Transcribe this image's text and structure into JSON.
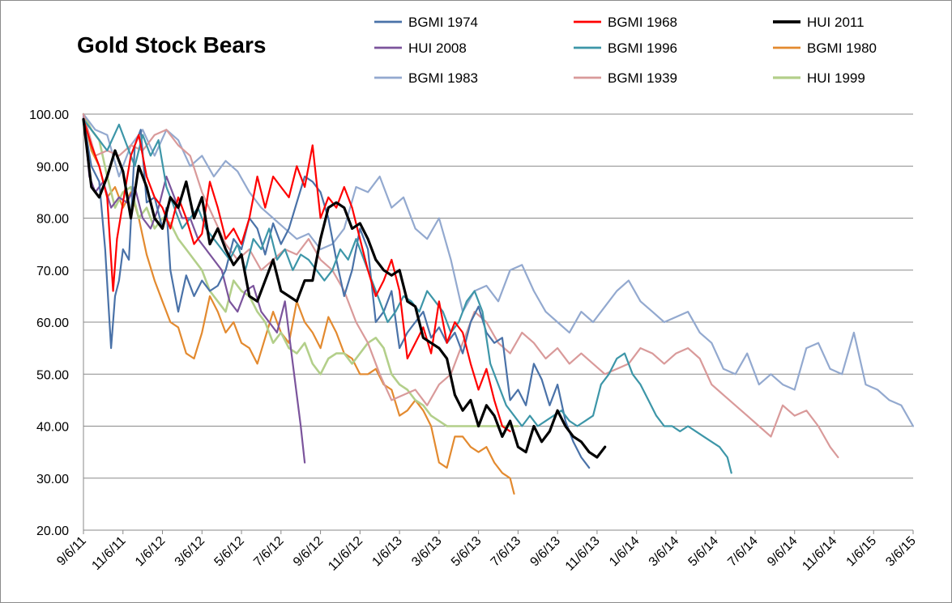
{
  "chart_data": {
    "type": "line",
    "title": "Gold Stock Bears",
    "ylim": [
      20,
      100
    ],
    "yticks": [
      "100.00",
      "90.00",
      "80.00",
      "70.00",
      "60.00",
      "50.00",
      "40.00",
      "30.00",
      "20.00"
    ],
    "xticks": [
      "9/6/11",
      "11/6/11",
      "1/6/12",
      "3/6/12",
      "5/6/12",
      "7/6/12",
      "9/6/12",
      "11/6/12",
      "1/6/13",
      "3/6/13",
      "5/6/13",
      "7/6/13",
      "9/6/13",
      "11/6/13",
      "1/6/14",
      "3/6/14",
      "5/6/14",
      "7/6/14",
      "9/6/14",
      "11/6/14",
      "1/6/15",
      "3/6/15"
    ],
    "grid": "horizontal",
    "legend_position": "top",
    "series": [
      {
        "name": "BGMI 1974",
        "color": "#4a72a8",
        "width": 2.2,
        "x": [
          0,
          0.2,
          0.4,
          0.55,
          0.7,
          0.8,
          0.9,
          1,
          1.15,
          1.3,
          1.45,
          1.6,
          1.8,
          2,
          2.1,
          2.2,
          2.4,
          2.6,
          2.8,
          3,
          3.2,
          3.4,
          3.6,
          3.8,
          4,
          4.2,
          4.4,
          4.6,
          4.8,
          5,
          5.2,
          5.4,
          5.6,
          5.8,
          6,
          6.2,
          6.4,
          6.6,
          6.8,
          7,
          7.2,
          7.4,
          7.6,
          7.8,
          8,
          8.2,
          8.4,
          8.6,
          8.8,
          9,
          9.2,
          9.4,
          9.6,
          9.8,
          10,
          10.2,
          10.4,
          10.6,
          10.8,
          11,
          11.2,
          11.4,
          11.6,
          11.8,
          12,
          12.2,
          12.4,
          12.6,
          12.8
        ],
        "y": [
          99,
          90,
          87,
          74,
          55,
          65,
          68,
          74,
          72,
          94,
          97,
          83,
          84,
          78,
          82,
          70,
          62,
          69,
          65,
          68,
          66,
          67,
          70,
          76,
          74,
          80,
          78,
          73,
          79,
          75,
          78,
          83,
          88,
          87,
          85,
          80,
          72,
          65,
          70,
          78,
          74,
          60,
          62,
          66,
          55,
          58,
          60,
          62,
          57,
          59,
          56,
          58,
          54,
          60,
          63,
          58,
          56,
          57,
          45,
          47,
          44,
          52,
          49,
          44,
          48,
          41,
          37,
          34,
          32
        ]
      },
      {
        "name": "BGMI 1968",
        "color": "#ff0000",
        "width": 2.2,
        "x": [
          0,
          0.2,
          0.4,
          0.6,
          0.75,
          0.85,
          1,
          1.2,
          1.4,
          1.6,
          1.8,
          2,
          2.2,
          2.4,
          2.6,
          2.8,
          3,
          3.2,
          3.4,
          3.6,
          3.8,
          4,
          4.2,
          4.4,
          4.6,
          4.8,
          5,
          5.2,
          5.4,
          5.6,
          5.8,
          6,
          6.2,
          6.4,
          6.6,
          6.8,
          7,
          7.2,
          7.4,
          7.6,
          7.8,
          8,
          8.2,
          8.4,
          8.6,
          8.8,
          9,
          9.2,
          9.4,
          9.6,
          9.8,
          10,
          10.2,
          10.4,
          10.6,
          10.8
        ],
        "y": [
          99,
          94,
          90,
          84,
          66,
          76,
          83,
          92,
          96,
          88,
          84,
          82,
          78,
          84,
          80,
          75,
          77,
          87,
          82,
          76,
          78,
          75,
          80,
          88,
          82,
          88,
          86,
          84,
          90,
          86,
          94,
          80,
          84,
          82,
          86,
          82,
          76,
          70,
          65,
          68,
          72,
          66,
          53,
          56,
          59,
          54,
          64,
          56,
          60,
          58,
          52,
          47,
          51,
          45,
          40,
          39
        ]
      },
      {
        "name": "HUI 2011",
        "color": "#000000",
        "width": 3.2,
        "x": [
          0,
          0.2,
          0.4,
          0.6,
          0.8,
          1,
          1.2,
          1.4,
          1.6,
          1.8,
          2,
          2.2,
          2.4,
          2.6,
          2.8,
          3,
          3.2,
          3.4,
          3.6,
          3.8,
          4,
          4.2,
          4.4,
          4.6,
          4.8,
          5,
          5.2,
          5.4,
          5.6,
          5.8,
          6,
          6.2,
          6.4,
          6.6,
          6.8,
          7,
          7.2,
          7.4,
          7.6,
          7.8,
          8,
          8.2,
          8.4,
          8.6,
          8.8,
          9,
          9.2,
          9.4,
          9.6,
          9.8,
          10,
          10.2,
          10.4,
          10.6,
          10.8,
          11,
          11.2,
          11.4,
          11.6,
          11.8,
          12,
          12.2,
          12.4,
          12.6,
          12.8,
          13,
          13.2
        ],
        "y": [
          99,
          86,
          84,
          88,
          93,
          89,
          80,
          90,
          86,
          80,
          78,
          84,
          82,
          87,
          80,
          84,
          75,
          78,
          74,
          71,
          73,
          65,
          64,
          68,
          72,
          66,
          65,
          64,
          68,
          68,
          76,
          82,
          83,
          82,
          78,
          79,
          76,
          72,
          70,
          69,
          70,
          64,
          63,
          57,
          56,
          55,
          53,
          46,
          43,
          45,
          40,
          44,
          42,
          38,
          41,
          36,
          35,
          40,
          37,
          39,
          43,
          40,
          38,
          37,
          35,
          34,
          36
        ]
      },
      {
        "name": "HUI 2008",
        "color": "#7b549c",
        "width": 2.2,
        "x": [
          0,
          0.15,
          0.3,
          0.5,
          0.7,
          0.9,
          1.1,
          1.3,
          1.5,
          1.7,
          1.9,
          2.1,
          2.3,
          2.5,
          2.7,
          2.9,
          3.1,
          3.3,
          3.5,
          3.7,
          3.9,
          4.1,
          4.3,
          4.5,
          4.7,
          4.9,
          5.1,
          5.3,
          5.5,
          5.6
        ],
        "y": [
          100,
          88,
          85,
          87,
          82,
          84,
          83,
          86,
          80,
          78,
          82,
          88,
          84,
          80,
          80,
          76,
          74,
          72,
          70,
          64,
          62,
          66,
          67,
          62,
          60,
          58,
          64,
          52,
          40,
          33
        ]
      },
      {
        "name": "BGMI 1996",
        "color": "#3d96a8",
        "width": 2.2,
        "x": [
          0,
          0.3,
          0.6,
          0.9,
          1.1,
          1.3,
          1.5,
          1.7,
          1.9,
          2.1,
          2.3,
          2.5,
          2.7,
          2.9,
          3.1,
          3.3,
          3.5,
          3.7,
          3.9,
          4.1,
          4.3,
          4.5,
          4.7,
          4.9,
          5.1,
          5.3,
          5.5,
          5.7,
          5.9,
          6.1,
          6.3,
          6.5,
          6.7,
          6.9,
          7.1,
          7.3,
          7.5,
          7.7,
          7.9,
          8.1,
          8.3,
          8.5,
          8.7,
          8.9,
          9.1,
          9.3,
          9.5,
          9.7,
          9.9,
          10.1,
          10.3,
          10.5,
          10.7,
          10.9,
          11.1,
          11.3,
          11.5,
          11.7,
          11.9,
          12.1,
          12.3,
          12.5,
          12.7,
          12.9,
          13.1,
          13.3,
          13.5,
          13.7,
          13.9,
          14.1,
          14.3,
          14.5,
          14.7,
          14.9,
          15.1,
          15.3,
          15.5,
          15.7,
          15.9,
          16.1,
          16.3,
          16.4
        ],
        "y": [
          99,
          96,
          93,
          98,
          94,
          90,
          96,
          92,
          95,
          86,
          82,
          78,
          80,
          82,
          78,
          76,
          74,
          72,
          75,
          70,
          76,
          74,
          78,
          72,
          74,
          70,
          73,
          72,
          70,
          68,
          70,
          74,
          72,
          76,
          72,
          68,
          64,
          60,
          62,
          65,
          64,
          62,
          66,
          64,
          62,
          58,
          60,
          64,
          66,
          62,
          52,
          48,
          44,
          42,
          40,
          42,
          40,
          41,
          42,
          43,
          41,
          40,
          41,
          42,
          48,
          50,
          53,
          54,
          50,
          48,
          45,
          42,
          40,
          40,
          39,
          40,
          39,
          38,
          37,
          36,
          34,
          31
        ]
      },
      {
        "name": "BGMI 1980",
        "color": "#e38a2f",
        "width": 2.2,
        "x": [
          0,
          0.2,
          0.4,
          0.6,
          0.8,
          1,
          1.2,
          1.4,
          1.6,
          1.8,
          2,
          2.2,
          2.4,
          2.6,
          2.8,
          3,
          3.2,
          3.4,
          3.6,
          3.8,
          4,
          4.2,
          4.4,
          4.6,
          4.8,
          5,
          5.2,
          5.4,
          5.6,
          5.8,
          6,
          6.2,
          6.4,
          6.6,
          6.8,
          7,
          7.2,
          7.4,
          7.6,
          7.8,
          8,
          8.2,
          8.4,
          8.6,
          8.8,
          9,
          9.2,
          9.4,
          9.6,
          9.8,
          10,
          10.2,
          10.4,
          10.6,
          10.8,
          10.9
        ],
        "y": [
          100,
          93,
          90,
          84,
          86,
          82,
          85,
          80,
          73,
          68,
          64,
          60,
          59,
          54,
          53,
          58,
          65,
          62,
          58,
          60,
          56,
          55,
          52,
          57,
          62,
          58,
          56,
          64,
          60,
          58,
          55,
          61,
          58,
          54,
          53,
          50,
          50,
          51,
          48,
          47,
          42,
          43,
          45,
          43,
          40,
          33,
          32,
          38,
          38,
          36,
          35,
          36,
          33,
          31,
          30,
          27
        ]
      },
      {
        "name": "BGMI 1983",
        "color": "#93a9cf",
        "width": 2.2,
        "x": [
          0,
          0.3,
          0.6,
          0.9,
          1.2,
          1.5,
          1.8,
          2.1,
          2.4,
          2.7,
          3,
          3.3,
          3.6,
          3.9,
          4.2,
          4.5,
          4.8,
          5.1,
          5.4,
          5.7,
          6,
          6.3,
          6.6,
          6.9,
          7.2,
          7.5,
          7.8,
          8.1,
          8.4,
          8.7,
          9,
          9.3,
          9.6,
          9.9,
          10.2,
          10.5,
          10.8,
          11.1,
          11.4,
          11.7,
          12,
          12.3,
          12.6,
          12.9,
          13.2,
          13.5,
          13.8,
          14.1,
          14.4,
          14.7,
          15,
          15.3,
          15.6,
          15.9,
          16.2,
          16.5,
          16.8,
          17.1,
          17.4,
          17.7,
          18,
          18.3,
          18.6,
          18.9,
          19.2,
          19.5,
          19.8,
          20.1,
          20.4,
          20.7,
          21
        ],
        "y": [
          100,
          97,
          96,
          88,
          94,
          97,
          92,
          97,
          95,
          90,
          92,
          88,
          91,
          89,
          85,
          82,
          80,
          78,
          76,
          77,
          74,
          75,
          78,
          86,
          85,
          88,
          82,
          84,
          78,
          76,
          80,
          72,
          62,
          66,
          67,
          64,
          70,
          71,
          66,
          62,
          60,
          58,
          62,
          60,
          63,
          66,
          68,
          64,
          62,
          60,
          61,
          62,
          58,
          56,
          51,
          50,
          54,
          48,
          50,
          48,
          47,
          55,
          56,
          51,
          50,
          58,
          48,
          47,
          45,
          44,
          40
        ]
      },
      {
        "name": "BGMI 1939",
        "color": "#d99a9a",
        "width": 2.2,
        "x": [
          0,
          0.3,
          0.6,
          0.9,
          1.2,
          1.5,
          1.8,
          2.1,
          2.4,
          2.7,
          3,
          3.3,
          3.6,
          3.9,
          4.2,
          4.5,
          4.8,
          5.1,
          5.4,
          5.7,
          6,
          6.3,
          6.6,
          6.9,
          7.2,
          7.5,
          7.8,
          8.1,
          8.4,
          8.7,
          9,
          9.3,
          9.6,
          9.9,
          10.2,
          10.5,
          10.8,
          11.1,
          11.4,
          11.7,
          12,
          12.3,
          12.6,
          12.9,
          13.2,
          13.5,
          13.8,
          14.1,
          14.4,
          14.7,
          15,
          15.3,
          15.6,
          15.9,
          16.2,
          16.5,
          16.8,
          17.1,
          17.4,
          17.7,
          18,
          18.3,
          18.6,
          18.9,
          19.1
        ],
        "y": [
          100,
          92,
          93,
          92,
          94,
          93,
          96,
          97,
          94,
          92,
          85,
          80,
          75,
          72,
          74,
          70,
          72,
          74,
          73,
          76,
          72,
          70,
          66,
          60,
          56,
          50,
          45,
          46,
          47,
          44,
          48,
          50,
          56,
          62,
          60,
          56,
          54,
          58,
          56,
          53,
          55,
          52,
          54,
          52,
          50,
          51,
          52,
          55,
          54,
          52,
          54,
          55,
          53,
          48,
          46,
          44,
          42,
          40,
          38,
          44,
          42,
          43,
          40,
          36,
          34
        ]
      },
      {
        "name": "HUI 1999",
        "color": "#b3cf8a",
        "width": 2.6,
        "x": [
          0,
          0.2,
          0.4,
          0.6,
          0.8,
          1,
          1.2,
          1.4,
          1.6,
          1.8,
          2,
          2.2,
          2.4,
          2.6,
          2.8,
          3,
          3.2,
          3.4,
          3.6,
          3.8,
          4,
          4.2,
          4.4,
          4.6,
          4.8,
          5,
          5.2,
          5.4,
          5.6,
          5.8,
          6,
          6.2,
          6.4,
          6.6,
          6.8,
          7,
          7.2,
          7.4,
          7.6,
          7.8,
          8,
          8.2,
          8.4,
          8.6,
          8.8,
          9,
          9.2,
          9.4,
          9.6,
          9.8,
          10,
          10.2,
          10.4,
          10.6,
          10.8,
          11
        ],
        "y": [
          100,
          97,
          95,
          88,
          82,
          85,
          86,
          80,
          82,
          78,
          80,
          79,
          76,
          74,
          72,
          70,
          66,
          64,
          62,
          68,
          66,
          65,
          62,
          60,
          56,
          58,
          55,
          54,
          56,
          52,
          50,
          53,
          54,
          54,
          52,
          54,
          56,
          57,
          55,
          50,
          48,
          47,
          45,
          44,
          42,
          41,
          40,
          40,
          40,
          40,
          40,
          40,
          40,
          40,
          40,
          40
        ]
      }
    ]
  }
}
